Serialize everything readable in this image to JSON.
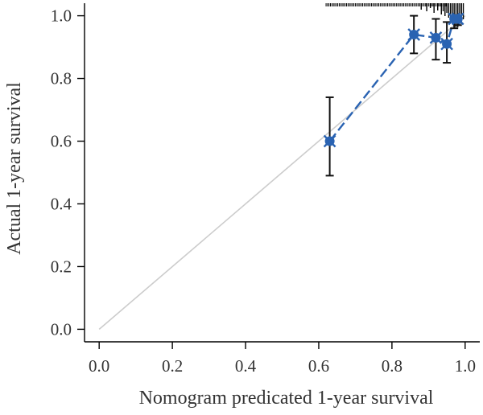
{
  "chart_data": {
    "type": "scatter",
    "xlabel": "Nomogram predicated 1-year survival",
    "ylabel": "Actual 1-year survival",
    "xlim": [
      -0.04,
      1.04
    ],
    "ylim": [
      -0.04,
      1.04
    ],
    "x_ticks": [
      "0.0",
      "0.2",
      "0.4",
      "0.6",
      "0.8",
      "1.0"
    ],
    "y_ticks": [
      "0.0",
      "0.2",
      "0.4",
      "0.6",
      "0.8",
      "1.0"
    ],
    "x_tick_values": [
      0.0,
      0.2,
      0.4,
      0.6,
      0.8,
      1.0
    ],
    "y_tick_values": [
      0.0,
      0.2,
      0.4,
      0.6,
      0.8,
      1.0
    ],
    "reference_line": {
      "x": [
        0,
        1
      ],
      "y": [
        0,
        1
      ],
      "color": "#cccccc"
    },
    "series": [
      {
        "x": [
          0.63,
          0.86,
          0.92,
          0.95,
          0.97,
          0.98
        ],
        "y": [
          0.6,
          0.94,
          0.93,
          0.91,
          0.99,
          0.99
        ],
        "y_lower": [
          0.49,
          0.88,
          0.86,
          0.85,
          0.96,
          0.97
        ],
        "y_upper": [
          0.74,
          1.0,
          0.99,
          0.98,
          1.0,
          1.0
        ],
        "color": "#2a63b2"
      }
    ],
    "rug_color": "#000000"
  }
}
